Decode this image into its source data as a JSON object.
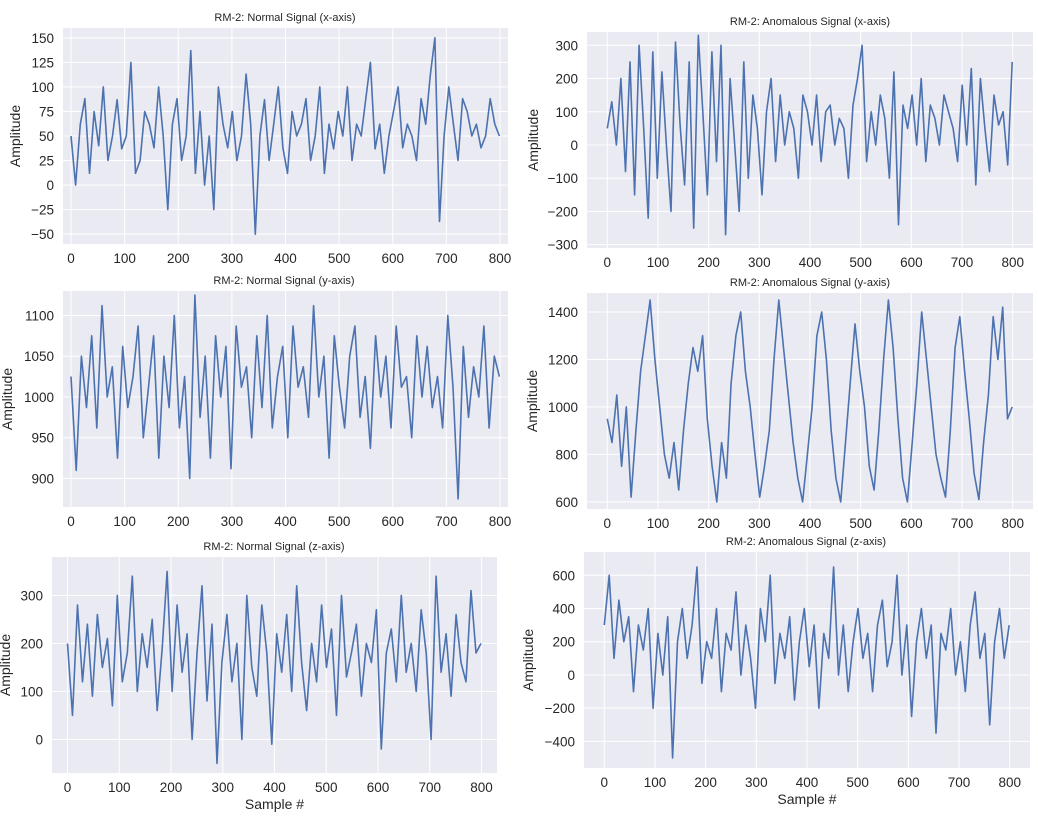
{
  "figure": {
    "background": "#ffffff",
    "axes_background": "#eaeaf2",
    "grid_color": "#ffffff",
    "line_color": "#4c72b0"
  },
  "chart_data": [
    {
      "type": "line",
      "title": "RM-2: Normal Signal (x-axis)",
      "xlabel": "",
      "ylabel": "Amplitude",
      "xlim": [
        -15,
        815
      ],
      "ylim": [
        -60,
        160
      ],
      "xticks": [
        0,
        100,
        200,
        300,
        400,
        500,
        600,
        700,
        800
      ],
      "yticks": [
        -50,
        -25,
        0,
        25,
        50,
        75,
        100,
        125,
        150
      ],
      "grid": true,
      "n_points": 800,
      "series": [
        {
          "values": [
            50,
            0,
            62,
            88,
            12,
            75,
            40,
            100,
            25,
            50,
            87,
            37,
            50,
            125,
            12,
            25,
            75,
            62,
            38,
            100,
            50,
            -25,
            62,
            88,
            25,
            50,
            137,
            12,
            75,
            0,
            50,
            -25,
            100,
            62,
            38,
            75,
            25,
            50,
            113,
            62,
            -50,
            50,
            87,
            25,
            62,
            100,
            38,
            12,
            75,
            50,
            62,
            88,
            25,
            50,
            100,
            12,
            62,
            37,
            75,
            50,
            100,
            25,
            62,
            50,
            88,
            125,
            37,
            62,
            12,
            50,
            75,
            100,
            38,
            62,
            50,
            25,
            88,
            62,
            112,
            150,
            -37,
            50,
            100,
            62,
            25,
            88,
            75,
            50,
            62,
            38,
            50,
            88,
            62,
            50
          ]
        }
      ]
    },
    {
      "type": "line",
      "title": "RM-2: Anomalous Signal (x-axis)",
      "xlabel": "",
      "ylabel": "Amplitude",
      "xlim": [
        -40,
        840
      ],
      "ylim": [
        -310,
        340
      ],
      "xticks": [
        0,
        100,
        200,
        300,
        400,
        500,
        600,
        700,
        800
      ],
      "yticks": [
        -300,
        -200,
        -100,
        0,
        100,
        200,
        300
      ],
      "grid": true,
      "n_points": 800,
      "series": [
        {
          "values": [
            50,
            130,
            0,
            200,
            -80,
            250,
            -150,
            300,
            50,
            -220,
            280,
            -100,
            220,
            0,
            -200,
            310,
            60,
            -120,
            250,
            -250,
            330,
            100,
            -150,
            280,
            -50,
            300,
            -270,
            200,
            0,
            -200,
            250,
            -100,
            150,
            50,
            -150,
            100,
            200,
            -50,
            150,
            0,
            100,
            50,
            -100,
            150,
            100,
            0,
            150,
            -50,
            100,
            120,
            0,
            80,
            50,
            -100,
            120,
            200,
            300,
            -50,
            100,
            0,
            150,
            80,
            -100,
            220,
            -240,
            120,
            50,
            150,
            0,
            200,
            -50,
            120,
            80,
            0,
            150,
            100,
            50,
            -50,
            180,
            0,
            230,
            -120,
            200,
            50,
            -80,
            150,
            60,
            100,
            -60,
            250
          ]
        }
      ]
    },
    {
      "type": "line",
      "title": "RM-2: Normal Signal (y-axis)",
      "xlabel": "",
      "ylabel": "Amplitude",
      "xlim": [
        -15,
        815
      ],
      "ylim": [
        865,
        1130
      ],
      "xticks": [
        0,
        100,
        200,
        300,
        400,
        500,
        600,
        700,
        800
      ],
      "yticks": [
        900,
        950,
        1000,
        1050,
        1100
      ],
      "grid": true,
      "n_points": 800,
      "series": [
        {
          "values": [
            1025,
            910,
            1050,
            987,
            1075,
            962,
            1112,
            1000,
            1037,
            925,
            1062,
            987,
            1025,
            1087,
            950,
            1012,
            1075,
            925,
            1050,
            987,
            1100,
            962,
            1025,
            900,
            1125,
            975,
            1050,
            925,
            1075,
            1000,
            1062,
            912,
            1087,
            1012,
            1037,
            950,
            1075,
            987,
            1100,
            962,
            1025,
            1062,
            950,
            1087,
            1012,
            1037,
            975,
            1112,
            1000,
            1050,
            925,
            1075,
            1012,
            962,
            1050,
            1087,
            975,
            1025,
            937,
            1075,
            1000,
            1050,
            962,
            1087,
            1012,
            1025,
            950,
            1075,
            1000,
            1062,
            987,
            1025,
            962,
            1100,
            1012,
            875,
            1062,
            975,
            1037,
            1000,
            1087,
            962,
            1050,
            1025
          ]
        }
      ]
    },
    {
      "type": "line",
      "title": "RM-2: Anomalous Signal (y-axis)",
      "xlabel": "",
      "ylabel": "Amplitude",
      "xlim": [
        -40,
        840
      ],
      "ylim": [
        570,
        1480
      ],
      "xticks": [
        0,
        100,
        200,
        300,
        400,
        500,
        600,
        700,
        800
      ],
      "yticks": [
        600,
        800,
        1000,
        1200,
        1400
      ],
      "grid": true,
      "n_points": 800,
      "series": [
        {
          "values": [
            950,
            850,
            1050,
            750,
            1000,
            620,
            900,
            1150,
            1300,
            1450,
            1200,
            1000,
            800,
            700,
            850,
            650,
            900,
            1100,
            1250,
            1150,
            1300,
            950,
            750,
            600,
            850,
            700,
            1100,
            1300,
            1400,
            1150,
            1000,
            800,
            620,
            750,
            900,
            1200,
            1450,
            1250,
            1050,
            850,
            700,
            600,
            800,
            1000,
            1300,
            1400,
            1200,
            900,
            700,
            600,
            850,
            1100,
            1350,
            1150,
            1000,
            750,
            650,
            900,
            1200,
            1450,
            1250,
            950,
            700,
            600,
            850,
            1100,
            1400,
            1200,
            1000,
            800,
            700,
            620,
            900,
            1250,
            1380,
            1150,
            950,
            720,
            610,
            850,
            1050,
            1380,
            1200,
            1420,
            950,
            1000
          ]
        }
      ]
    },
    {
      "type": "line",
      "title": "RM-2: Normal Signal (z-axis)",
      "xlabel": "Sample #",
      "ylabel": "Amplitude",
      "xlim": [
        -30,
        830
      ],
      "ylim": [
        -70,
        380
      ],
      "xticks": [
        0,
        100,
        200,
        300,
        400,
        500,
        600,
        700,
        800
      ],
      "yticks": [
        0,
        100,
        200,
        300
      ],
      "grid": true,
      "n_points": 800,
      "series": [
        {
          "values": [
            200,
            50,
            280,
            120,
            240,
            90,
            260,
            150,
            210,
            70,
            300,
            120,
            180,
            340,
            100,
            220,
            150,
            250,
            60,
            190,
            350,
            100,
            280,
            140,
            220,
            0,
            180,
            320,
            80,
            240,
            -50,
            160,
            260,
            120,
            200,
            0,
            300,
            150,
            90,
            280,
            180,
            -10,
            220,
            140,
            260,
            100,
            320,
            160,
            60,
            200,
            120,
            280,
            150,
            230,
            50,
            300,
            130,
            180,
            240,
            90,
            200,
            160,
            270,
            -20,
            180,
            230,
            120,
            300,
            140,
            200,
            100,
            270,
            180,
            0,
            340,
            140,
            220,
            90,
            260,
            160,
            120,
            310,
            180,
            200
          ]
        }
      ]
    },
    {
      "type": "line",
      "title": "RM-2: Anomalous Signal (z-axis)",
      "xlabel": "Sample #",
      "ylabel": "Amplitude",
      "xlim": [
        -40,
        840
      ],
      "ylim": [
        -560,
        740
      ],
      "xticks": [
        0,
        100,
        200,
        300,
        400,
        500,
        600,
        700,
        800
      ],
      "yticks": [
        -400,
        -200,
        0,
        200,
        400,
        600
      ],
      "grid": true,
      "n_points": 800,
      "series": [
        {
          "values": [
            300,
            600,
            100,
            450,
            200,
            350,
            -100,
            300,
            150,
            400,
            -200,
            250,
            0,
            350,
            -500,
            200,
            400,
            100,
            300,
            650,
            -50,
            200,
            100,
            400,
            -100,
            250,
            150,
            500,
            0,
            300,
            100,
            -200,
            400,
            200,
            600,
            -50,
            250,
            100,
            350,
            -150,
            200,
            400,
            50,
            300,
            -200,
            250,
            100,
            650,
            0,
            300,
            -100,
            200,
            400,
            100,
            250,
            -100,
            300,
            450,
            50,
            200,
            600,
            0,
            300,
            -250,
            200,
            400,
            100,
            300,
            -350,
            250,
            150,
            400,
            0,
            200,
            -100,
            300,
            500,
            100,
            250,
            -300,
            200,
            400,
            100,
            300
          ]
        }
      ]
    }
  ]
}
